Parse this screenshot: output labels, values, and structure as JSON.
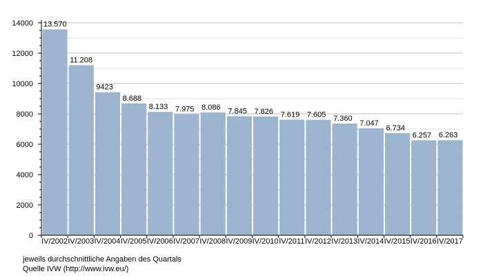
{
  "chart_data": {
    "type": "bar",
    "categories": [
      "IV/2002",
      "IV/2003",
      "IV/2004",
      "IV/2005",
      "IV/2006",
      "IV/2007",
      "IV/2008",
      "IV/2009",
      "IV/2010",
      "IV/2011",
      "IV/2012",
      "IV/2013",
      "IV/2014",
      "IV/2015",
      "IV/2016",
      "IV/2017"
    ],
    "values": [
      13570,
      11208,
      9423,
      8688,
      8133,
      7975,
      8086,
      7845,
      7826,
      7619,
      7605,
      7360,
      7047,
      6734,
      6257,
      6263
    ],
    "value_labels": [
      "13.570",
      "11.208",
      "9423",
      "8.688",
      "8.133",
      "7.975",
      "8.086",
      "7.845",
      "7.826",
      "7.619",
      "7.605",
      "7.360",
      "7.047",
      "6.734",
      "6.257",
      "6.263"
    ],
    "y_ticks": [
      "0",
      "2000",
      "4000",
      "6000",
      "8000",
      "10000",
      "12000",
      "14000"
    ],
    "ylim": [
      0,
      14000
    ],
    "grid": true,
    "bar_color": "#9db4ce",
    "title": "",
    "xlabel": "",
    "ylabel": ""
  },
  "notes": {
    "line1": "jeweils durchschnittliche Angaben des Quartals",
    "line2": "Quelle IVW (http://www.ivw.eu/)"
  }
}
